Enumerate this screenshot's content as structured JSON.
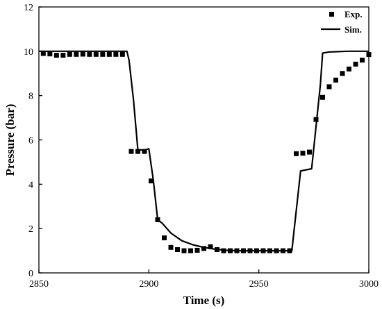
{
  "chart_data": {
    "type": "scatter",
    "title": "",
    "xlabel": "Time (s)",
    "ylabel": "Pressure (bar)",
    "xlim": [
      2850,
      3000
    ],
    "ylim": [
      0,
      12
    ],
    "xticks": [
      2850,
      2900,
      2950,
      3000
    ],
    "yticks": [
      0,
      2,
      4,
      6,
      8,
      10,
      12
    ],
    "legend_position": "top-right",
    "grid": false,
    "series": [
      {
        "name": "Exp.",
        "type": "scatter",
        "marker": "square",
        "color": "#000000",
        "x": [
          2852,
          2855,
          2858,
          2861,
          2864,
          2867,
          2870,
          2873,
          2876,
          2879,
          2882,
          2885,
          2888,
          2892,
          2895,
          2898,
          2901,
          2904,
          2907,
          2910,
          2913,
          2916,
          2919,
          2922,
          2925,
          2928,
          2931,
          2934,
          2937,
          2940,
          2943,
          2946,
          2949,
          2952,
          2955,
          2958,
          2961,
          2964,
          2967,
          2970,
          2973,
          2976,
          2979,
          2982,
          2985,
          2988,
          2991,
          2994,
          2997,
          3000
        ],
        "y": [
          9.9,
          9.88,
          9.82,
          9.82,
          9.86,
          9.86,
          9.87,
          9.86,
          9.86,
          9.86,
          9.86,
          9.86,
          9.86,
          5.48,
          5.48,
          5.48,
          4.15,
          2.4,
          1.58,
          1.15,
          1.05,
          1.0,
          1.0,
          1.02,
          1.1,
          1.18,
          1.05,
          1.0,
          1.0,
          1.0,
          1.0,
          1.0,
          1.0,
          1.0,
          1.0,
          1.0,
          1.0,
          1.0,
          5.38,
          5.4,
          5.45,
          6.92,
          7.92,
          8.4,
          8.7,
          9.0,
          9.2,
          9.42,
          9.6,
          9.85
        ]
      },
      {
        "name": "Sim.",
        "type": "line",
        "color": "#000000",
        "x": [
          2850,
          2890,
          2891,
          2893,
          2895,
          2898,
          2900,
          2902,
          2904,
          2906,
          2910,
          2915,
          2920,
          2925,
          2930,
          2935,
          2940,
          2950,
          2960,
          2965,
          2969,
          2974,
          2976,
          2978,
          2979,
          2982,
          2985,
          2990,
          3000
        ],
        "y": [
          10.0,
          10.0,
          9.6,
          7.8,
          5.55,
          5.55,
          5.6,
          4.2,
          2.4,
          2.25,
          1.8,
          1.45,
          1.27,
          1.15,
          1.07,
          1.02,
          1.0,
          1.0,
          1.0,
          1.0,
          4.6,
          4.7,
          6.6,
          8.5,
          9.92,
          9.97,
          9.98,
          10.0,
          10.0
        ]
      }
    ]
  }
}
